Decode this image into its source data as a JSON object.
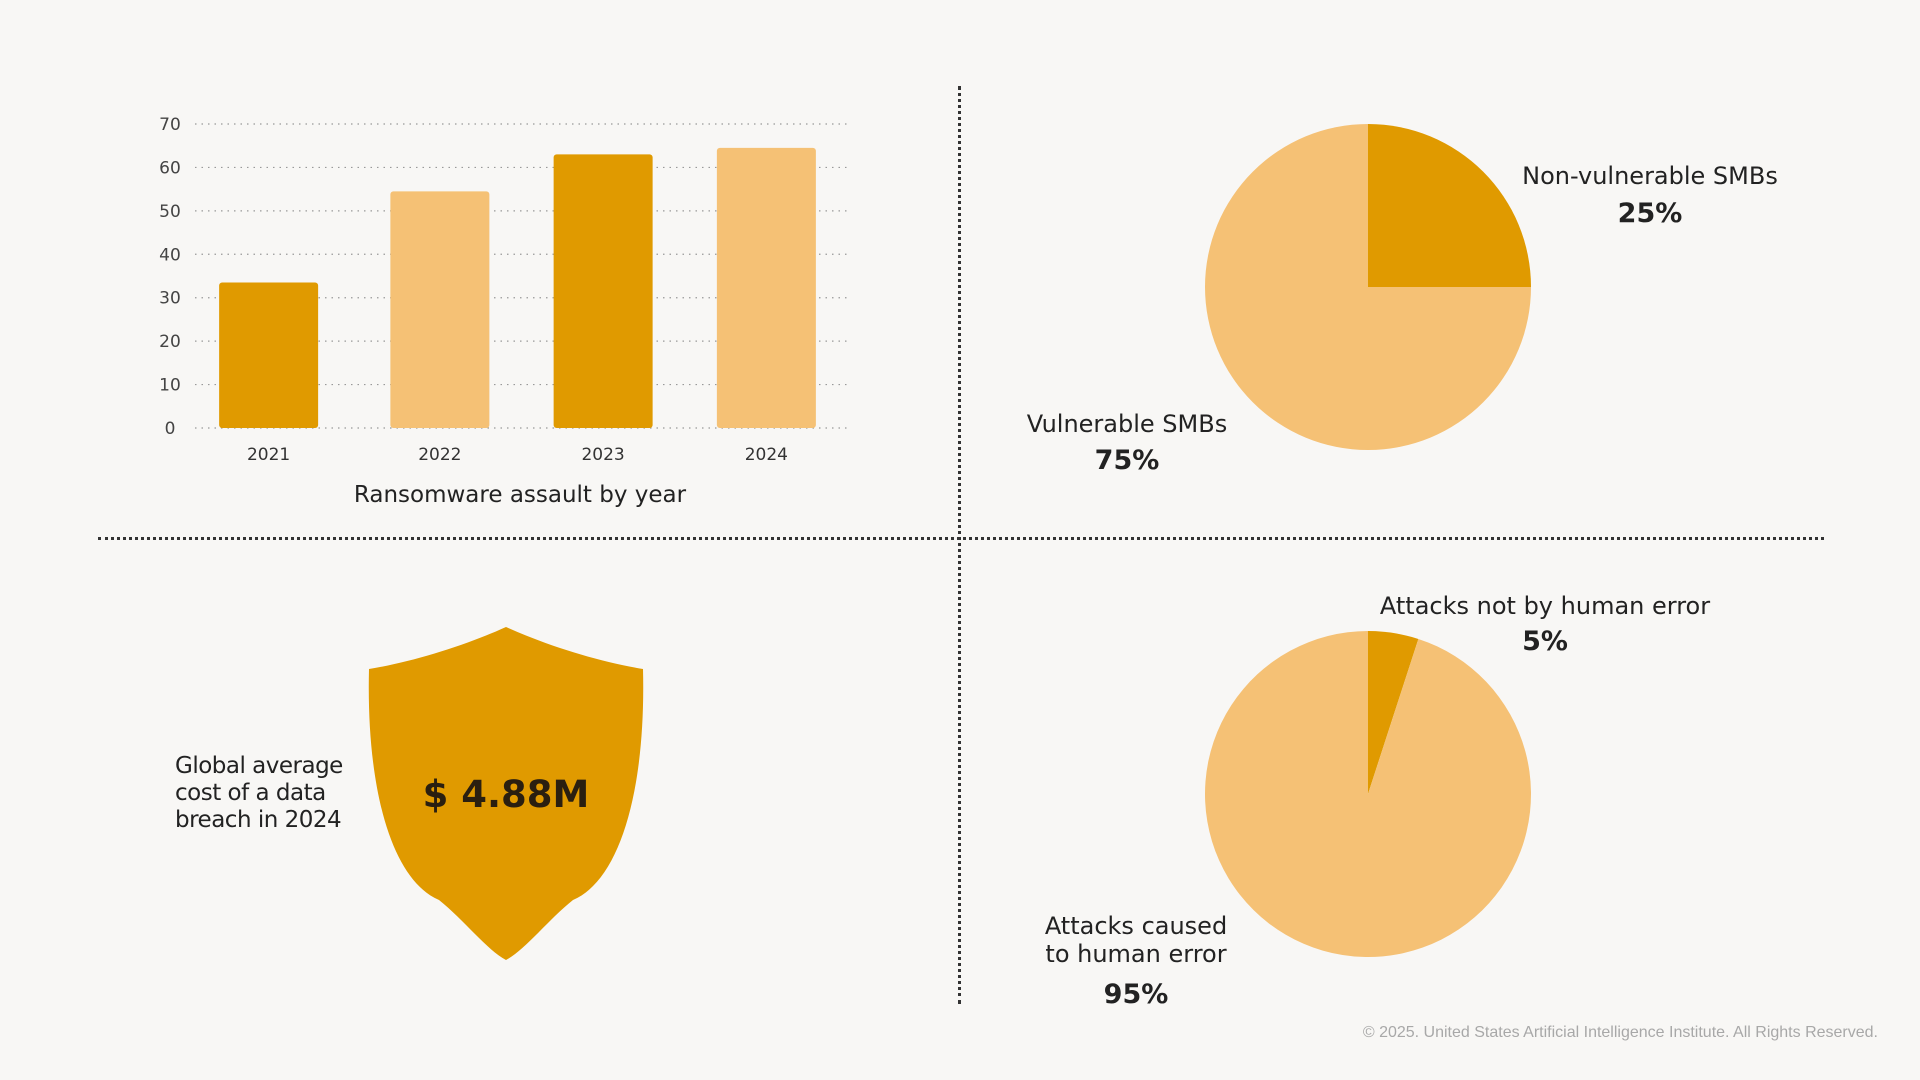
{
  "colors": {
    "dark": "#e09a00",
    "light": "#f5c175",
    "text": "#222222",
    "background": "#f8f7f5"
  },
  "chart_data": [
    {
      "type": "bar",
      "title": "Ransomware assault by year",
      "categories": [
        "2021",
        "2022",
        "2023",
        "2024"
      ],
      "values": [
        33.5,
        54.5,
        63,
        64.5
      ],
      "bar_colors": [
        "#e09a00",
        "#f5c175",
        "#e09a00",
        "#f5c175"
      ],
      "yticks": [
        "0",
        "10",
        "20",
        "30",
        "40",
        "50",
        "60",
        "70"
      ],
      "ylim": [
        0,
        70
      ],
      "xlabel": "",
      "ylabel": "",
      "grid": "dotted-horizontal"
    },
    {
      "type": "pie",
      "slices": [
        {
          "label": "Non-vulnerable SMBs",
          "pct_label": "25%",
          "value": 25,
          "color": "#e09a00"
        },
        {
          "label": "Vulnerable SMBs",
          "pct_label": "75%",
          "value": 75,
          "color": "#f5c175"
        }
      ]
    },
    {
      "type": "pie",
      "slices": [
        {
          "label": "Attacks not by human error",
          "pct_label": "5%",
          "value": 5,
          "color": "#e09a00"
        },
        {
          "label_lines": [
            "Attacks caused",
            "to human error"
          ],
          "pct_label": "95%",
          "value": 95,
          "color": "#f5c175"
        }
      ]
    }
  ],
  "breach": {
    "label": "Global average cost of a data breach in 2024",
    "value": "$ 4.88M"
  },
  "footer": {
    "copyright": "© 2025. United States Artificial Intelligence Institute. All Rights Reserved."
  }
}
